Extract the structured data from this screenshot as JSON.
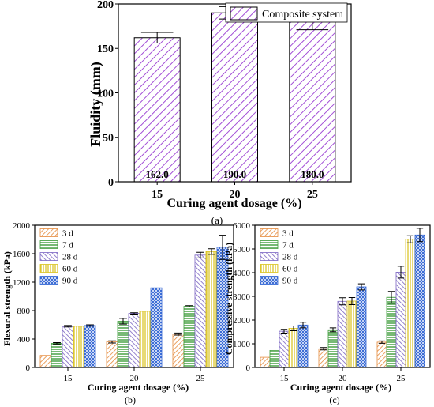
{
  "colors": {
    "composite": "#a24fd6",
    "d3": "#e58a3c",
    "d7": "#3e9c3a",
    "d28": "#7a64c2",
    "d60": "#d9c21a",
    "d90": "#2f63d3"
  },
  "chart_data": [
    {
      "panel": "(a)",
      "type": "bar",
      "xlabel": "Curing agent dosage (%)",
      "ylabel": "Fluidity (mm)",
      "categories": [
        "15",
        "20",
        "25"
      ],
      "series": [
        {
          "name": "Composite system",
          "values": [
            162.0,
            190.0,
            180.0
          ],
          "errors": [
            6,
            7,
            9
          ],
          "data_labels": [
            "162.0",
            "190.0",
            "180.0"
          ]
        }
      ],
      "ylim": [
        0,
        200
      ],
      "yticks": [
        "0",
        "50",
        "100",
        "150",
        "200"
      ],
      "legend": "top-right",
      "grid": false
    },
    {
      "panel": "(b)",
      "type": "bar",
      "xlabel": "Curing agent dosage (%)",
      "ylabel": "Flexural strength (kPa)",
      "categories": [
        "15",
        "20",
        "25"
      ],
      "series": [
        {
          "name": "3 d",
          "values": [
            170,
            360,
            470
          ],
          "errors": [
            0,
            15,
            15
          ]
        },
        {
          "name": "7 d",
          "values": [
            340,
            650,
            860
          ],
          "errors": [
            10,
            40,
            10
          ]
        },
        {
          "name": "28 d",
          "values": [
            580,
            760,
            1580
          ],
          "errors": [
            10,
            10,
            40
          ]
        },
        {
          "name": "60 d",
          "values": [
            580,
            790,
            1630
          ],
          "errors": [
            0,
            0,
            40
          ]
        },
        {
          "name": "90 d",
          "values": [
            590,
            1120,
            1690
          ],
          "errors": [
            10,
            0,
            170
          ]
        }
      ],
      "ylim": [
        0,
        2000
      ],
      "yticks": [
        "0",
        "400",
        "800",
        "1200",
        "1600",
        "2000"
      ],
      "legend": "top-left",
      "grid": false
    },
    {
      "panel": "(c)",
      "type": "bar",
      "xlabel": "Curing agent dosage (%)",
      "ylabel": "Compressive strength (kPa)",
      "categories": [
        "15",
        "20",
        "25"
      ],
      "series": [
        {
          "name": "3 d",
          "values": [
            430,
            790,
            1070
          ],
          "errors": [
            0,
            50,
            50
          ]
        },
        {
          "name": "7 d",
          "values": [
            720,
            1590,
            2960
          ],
          "errors": [
            0,
            80,
            250
          ]
        },
        {
          "name": "28 d",
          "values": [
            1530,
            2790,
            4020
          ],
          "errors": [
            80,
            150,
            250
          ]
        },
        {
          "name": "60 d",
          "values": [
            1650,
            2800,
            5410
          ],
          "errors": [
            100,
            150,
            150
          ]
        },
        {
          "name": "90 d",
          "values": [
            1790,
            3400,
            5590
          ],
          "errors": [
            120,
            130,
            280
          ]
        }
      ],
      "ylim": [
        0,
        6000
      ],
      "yticks": [
        "0",
        "1000",
        "2000",
        "3000",
        "4000",
        "5000",
        "6000"
      ],
      "legend": "top-left",
      "grid": false
    }
  ]
}
